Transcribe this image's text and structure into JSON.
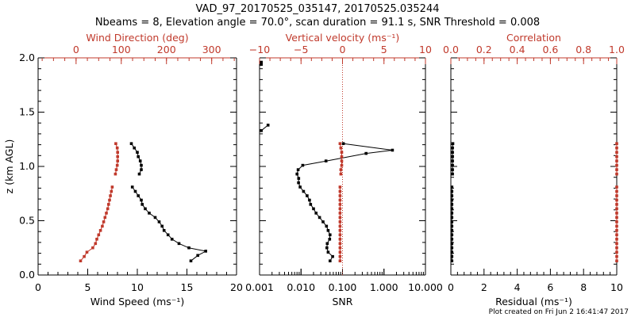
{
  "figure": {
    "title_line1": "VAD_97_20170525_035147, 20170525.035244",
    "title_line2": "Nbeams = 8, Elevation angle = 70.0°, scan duration = 91.1 s, SNR Threshold = 0.008",
    "footer": "Plot created on Fri Jun  2 16:41:47 2017",
    "colors": {
      "black": "#000000",
      "red": "#c0392b"
    }
  },
  "chart_data": [
    {
      "type": "line",
      "name": "wind-panel",
      "ylabel": "z (km AGL)",
      "ylim": [
        0,
        2
      ],
      "yticks": [
        "0.0",
        "0.5",
        "1.0",
        "1.5",
        "2.0"
      ],
      "bottom_axis": {
        "label": "Wind Speed (ms⁻¹)",
        "lim": [
          0,
          20
        ],
        "ticks": [
          "0",
          "5",
          "10",
          "15",
          "20"
        ]
      },
      "top_axis": {
        "label": "Wind Direction (deg)",
        "lim": [
          -84,
          355
        ],
        "ticks": [
          "0",
          "100",
          "200",
          "300"
        ],
        "tick_values": [
          0,
          100,
          200,
          300
        ]
      },
      "series": [
        {
          "name": "Wind Speed",
          "axis": "bottom",
          "color": "black",
          "segments": [
            [
              [
                9.4,
                1.21
              ],
              [
                9.7,
                1.17
              ],
              [
                10.0,
                1.13
              ],
              [
                10.1,
                1.09
              ],
              [
                10.3,
                1.05
              ],
              [
                10.4,
                1.01
              ],
              [
                10.4,
                0.97
              ],
              [
                10.2,
                0.93
              ]
            ],
            [
              [
                9.5,
                0.81
              ],
              [
                9.8,
                0.77
              ],
              [
                10.1,
                0.73
              ],
              [
                10.4,
                0.69
              ],
              [
                10.5,
                0.65
              ],
              [
                10.8,
                0.61
              ],
              [
                11.2,
                0.57
              ],
              [
                11.8,
                0.53
              ],
              [
                12.2,
                0.49
              ],
              [
                12.5,
                0.45
              ],
              [
                12.7,
                0.41
              ],
              [
                13.1,
                0.37
              ],
              [
                13.5,
                0.33
              ],
              [
                14.2,
                0.29
              ],
              [
                15.2,
                0.25
              ],
              [
                16.9,
                0.22
              ],
              [
                16.1,
                0.18
              ],
              [
                15.4,
                0.13
              ]
            ]
          ]
        },
        {
          "name": "Wind Direction",
          "axis": "top",
          "color": "red",
          "segments": [
            [
              [
                88,
                1.21
              ],
              [
                91,
                1.17
              ],
              [
                92,
                1.13
              ],
              [
                92,
                1.09
              ],
              [
                92,
                1.05
              ],
              [
                91,
                1.01
              ],
              [
                89,
                0.97
              ],
              [
                87,
                0.93
              ]
            ],
            [
              [
                80,
                0.81
              ],
              [
                78,
                0.77
              ],
              [
                76,
                0.73
              ],
              [
                74,
                0.69
              ],
              [
                72,
                0.65
              ],
              [
                70,
                0.61
              ],
              [
                67,
                0.57
              ],
              [
                64,
                0.53
              ],
              [
                61,
                0.49
              ],
              [
                58,
                0.45
              ],
              [
                54,
                0.41
              ],
              [
                50,
                0.37
              ],
              [
                46,
                0.33
              ],
              [
                43,
                0.29
              ],
              [
                37,
                0.25
              ],
              [
                24,
                0.21
              ],
              [
                18,
                0.17
              ],
              [
                10,
                0.13
              ]
            ]
          ]
        }
      ]
    },
    {
      "type": "line",
      "name": "snr-panel",
      "ylim": [
        0,
        2
      ],
      "bottom_axis": {
        "label": "SNR",
        "scale": "log",
        "lim": [
          0.001,
          10
        ],
        "ticks": [
          "0.001",
          "0.010",
          "0.100",
          "1.000",
          "10.000"
        ],
        "tick_values": [
          0.001,
          0.01,
          0.1,
          1,
          10
        ]
      },
      "top_axis": {
        "label": "Vertical velocity (ms⁻¹)",
        "lim": [
          -10,
          10
        ],
        "ticks": [
          "−10",
          "−5",
          "0",
          "5",
          "10"
        ],
        "tick_values": [
          -10,
          -5,
          0,
          5,
          10
        ],
        "reference_line": 0
      },
      "series": [
        {
          "name": "SNR",
          "axis": "bottom",
          "color": "black",
          "segments": [
            [
              [
                0.0011,
                1.94
              ],
              [
                0.0011,
                1.96
              ]
            ],
            [
              [
                0.0011,
                1.33
              ],
              [
                0.0016,
                1.38
              ]
            ],
            [
              [
                0.105,
                1.21
              ],
              [
                1.6,
                1.15
              ],
              [
                0.37,
                1.12
              ],
              [
                0.04,
                1.05
              ],
              [
                0.011,
                1.01
              ],
              [
                0.0085,
                0.97
              ],
              [
                0.008,
                0.93
              ],
              [
                0.0088,
                0.89
              ],
              [
                0.0087,
                0.85
              ],
              [
                0.0095,
                0.81
              ],
              [
                0.0115,
                0.77
              ],
              [
                0.014,
                0.73
              ],
              [
                0.016,
                0.69
              ],
              [
                0.017,
                0.65
              ],
              [
                0.02,
                0.61
              ],
              [
                0.023,
                0.57
              ],
              [
                0.028,
                0.53
              ],
              [
                0.034,
                0.49
              ],
              [
                0.041,
                0.45
              ],
              [
                0.045,
                0.41
              ],
              [
                0.05,
                0.37
              ],
              [
                0.049,
                0.33
              ],
              [
                0.043,
                0.29
              ],
              [
                0.042,
                0.25
              ],
              [
                0.045,
                0.21
              ],
              [
                0.058,
                0.17
              ],
              [
                0.05,
                0.13
              ]
            ]
          ]
        },
        {
          "name": "Vertical velocity",
          "axis": "top",
          "color": "red",
          "segments": [
            [
              [
                -0.3,
                1.21
              ],
              [
                -0.2,
                1.17
              ],
              [
                -0.1,
                1.13
              ],
              [
                -0.1,
                1.09
              ],
              [
                -0.1,
                1.05
              ],
              [
                -0.1,
                1.01
              ],
              [
                -0.2,
                0.97
              ],
              [
                -0.2,
                0.93
              ]
            ],
            [
              [
                -0.3,
                0.81
              ],
              [
                -0.3,
                0.77
              ],
              [
                -0.3,
                0.73
              ],
              [
                -0.3,
                0.69
              ],
              [
                -0.3,
                0.65
              ],
              [
                -0.3,
                0.61
              ],
              [
                -0.3,
                0.57
              ],
              [
                -0.3,
                0.53
              ],
              [
                -0.3,
                0.49
              ],
              [
                -0.3,
                0.45
              ],
              [
                -0.3,
                0.41
              ],
              [
                -0.3,
                0.37
              ],
              [
                -0.3,
                0.33
              ],
              [
                -0.3,
                0.29
              ],
              [
                -0.3,
                0.25
              ],
              [
                -0.3,
                0.21
              ],
              [
                -0.3,
                0.17
              ],
              [
                -0.3,
                0.13
              ]
            ]
          ]
        }
      ]
    },
    {
      "type": "line",
      "name": "residual-panel",
      "ylim": [
        0,
        2
      ],
      "bottom_axis": {
        "label": "Residual (ms⁻¹)",
        "lim": [
          0,
          10
        ],
        "ticks": [
          "0",
          "2",
          "4",
          "6",
          "8",
          "10"
        ]
      },
      "top_axis": {
        "label": "Correlation",
        "lim": [
          0,
          1
        ],
        "ticks": [
          "0.0",
          "0.2",
          "0.4",
          "0.6",
          "0.8",
          "1.0"
        ],
        "tick_values": [
          0,
          0.2,
          0.4,
          0.6,
          0.8,
          1.0
        ]
      },
      "series": [
        {
          "name": "Residual",
          "axis": "bottom",
          "color": "black",
          "segments": [
            [
              [
                0.12,
                1.21
              ],
              [
                0.1,
                1.17
              ],
              [
                0.1,
                1.13
              ],
              [
                0.1,
                1.09
              ],
              [
                0.1,
                1.05
              ],
              [
                0.1,
                1.01
              ],
              [
                0.1,
                0.97
              ],
              [
                0.1,
                0.93
              ]
            ],
            [
              [
                0.06,
                0.81
              ],
              [
                0.06,
                0.77
              ],
              [
                0.06,
                0.73
              ],
              [
                0.06,
                0.69
              ],
              [
                0.06,
                0.65
              ],
              [
                0.06,
                0.61
              ],
              [
                0.06,
                0.57
              ],
              [
                0.06,
                0.53
              ],
              [
                0.06,
                0.49
              ],
              [
                0.06,
                0.45
              ],
              [
                0.06,
                0.41
              ],
              [
                0.06,
                0.37
              ],
              [
                0.06,
                0.33
              ],
              [
                0.06,
                0.29
              ],
              [
                0.06,
                0.25
              ],
              [
                0.06,
                0.21
              ],
              [
                0.06,
                0.17
              ],
              [
                0.06,
                0.13
              ]
            ]
          ]
        },
        {
          "name": "Correlation",
          "axis": "top",
          "color": "red",
          "segments": [
            [
              [
                1.0,
                1.21
              ],
              [
                1.0,
                1.17
              ],
              [
                1.0,
                1.13
              ],
              [
                1.0,
                1.09
              ],
              [
                1.0,
                1.05
              ],
              [
                1.0,
                1.01
              ],
              [
                1.0,
                0.97
              ],
              [
                1.0,
                0.93
              ]
            ],
            [
              [
                1.0,
                0.81
              ],
              [
                1.0,
                0.77
              ],
              [
                1.0,
                0.73
              ],
              [
                1.0,
                0.69
              ],
              [
                1.0,
                0.65
              ],
              [
                1.0,
                0.61
              ],
              [
                1.0,
                0.57
              ],
              [
                1.0,
                0.53
              ],
              [
                1.0,
                0.49
              ],
              [
                1.0,
                0.45
              ],
              [
                1.0,
                0.41
              ],
              [
                1.0,
                0.37
              ],
              [
                1.0,
                0.33
              ],
              [
                1.0,
                0.29
              ],
              [
                1.0,
                0.25
              ],
              [
                1.0,
                0.21
              ],
              [
                1.0,
                0.17
              ],
              [
                1.0,
                0.13
              ]
            ]
          ]
        }
      ]
    }
  ]
}
